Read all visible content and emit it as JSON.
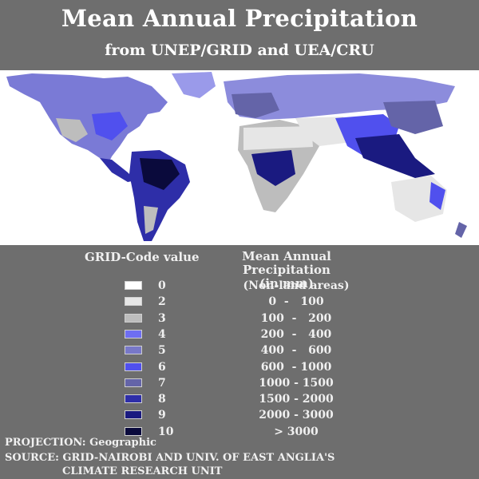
{
  "title": "Mean Annual Precipitation",
  "subtitle": "from UNEP/GRID and UEA/CRU",
  "legend": {
    "code_header": "GRID-Code value",
    "precip_header_1": "Mean Annual Precipitation",
    "precip_header_2": "(in mm)",
    "items": [
      {
        "code": "0",
        "range": "(Non-land areas)",
        "color": "#ffffff"
      },
      {
        "code": "2",
        "range": "0  -   100",
        "color": "#e6e6e6"
      },
      {
        "code": "3",
        "range": "100  -   200",
        "color": "#bdbdbd"
      },
      {
        "code": "4",
        "range": "200  -   400",
        "color": "#6e6ef2"
      },
      {
        "code": "5",
        "range": "400  -   600",
        "color": "#7878c8"
      },
      {
        "code": "6",
        "range": "600  - 1000",
        "color": "#5050ee"
      },
      {
        "code": "7",
        "range": "1000 - 1500",
        "color": "#6464a8"
      },
      {
        "code": "8",
        "range": "1500 - 2000",
        "color": "#2e2ea8"
      },
      {
        "code": "9",
        "range": "2000 - 3000",
        "color": "#1a1a80"
      },
      {
        "code": "10",
        "range": "> 3000",
        "color": "#0a0a3c"
      }
    ]
  },
  "footer": {
    "projection": "PROJECTION: Geographic",
    "source_1": "SOURCE: GRID-NAIROBI AND UNIV. OF EAST ANGLIA'S",
    "source_2": "CLIMATE RESEARCH UNIT"
  }
}
